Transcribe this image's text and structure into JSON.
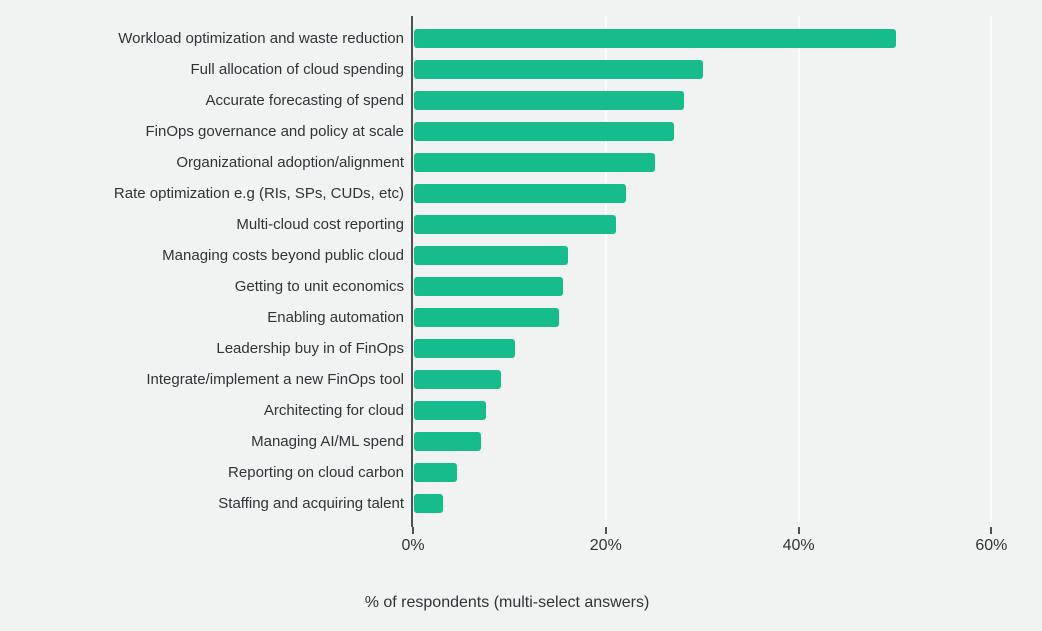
{
  "chart_data": {
    "type": "bar",
    "orientation": "horizontal",
    "title": "",
    "xlabel": "% of respondents (multi-select answers)",
    "ylabel": "",
    "categories": [
      "Workload optimization and waste reduction",
      "Full allocation of cloud spending",
      "Accurate forecasting of spend",
      "FinOps governance and policy at scale",
      "Organizational adoption/alignment",
      "Rate optimization e.g (RIs, SPs, CUDs, etc)",
      "Multi-cloud cost reporting",
      "Managing costs beyond public cloud",
      "Getting to unit economics",
      "Enabling automation",
      "Leadership buy in of FinOps",
      "Integrate/implement a new FinOps tool",
      "Architecting for cloud",
      "Managing AI/ML spend",
      "Reporting on cloud carbon",
      "Staffing and acquiring talent"
    ],
    "values": [
      50,
      30,
      28,
      27,
      25,
      22,
      21,
      16,
      15.5,
      15,
      10.5,
      9,
      7.5,
      7,
      4.5,
      3
    ],
    "value_unit": "%",
    "xlim": [
      0,
      62
    ],
    "x_ticks": [
      0,
      20,
      40,
      60
    ],
    "x_tick_labels": [
      "0%",
      "20%",
      "40%",
      "60%"
    ],
    "grid": "vertical gridlines at 20, 40, 60",
    "legend_position": "none",
    "colors": {
      "bar": "#17bc8c",
      "background": "#f1f2f2",
      "gridline": "#fbfcfc",
      "axis": "#4d5254",
      "text": "#2f3438"
    }
  }
}
